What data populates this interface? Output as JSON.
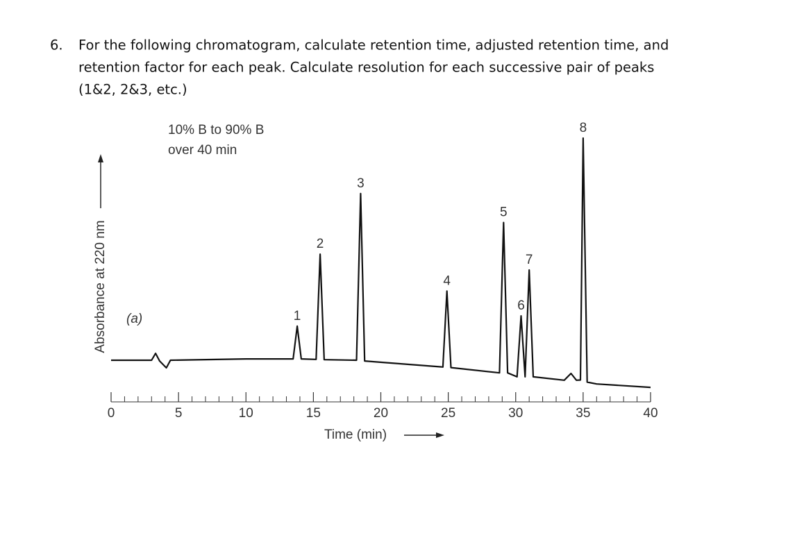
{
  "question": {
    "number": "6.",
    "lines": [
      "For the following chromatogram, calculate retention time, adjusted retention time, and",
      "retention factor for each peak. Calculate resolution for each successive pair of peaks",
      "(1&2, 2&3, etc.)"
    ]
  },
  "chart_data": {
    "type": "line",
    "annotations": [
      "10% B to 90% B",
      "over 40 min",
      "(a)"
    ],
    "xlabel": "Time (min)",
    "ylabel": "Absorbance at 220 nm",
    "x": [
      0,
      3.0,
      3.3,
      3.6,
      4.1,
      4.4,
      10,
      13.5,
      13.8,
      14.1,
      15.2,
      15.5,
      15.8,
      18.2,
      18.5,
      18.8,
      24.6,
      24.9,
      25.2,
      28.8,
      29.1,
      29.4,
      30.1,
      30.4,
      30.7,
      31.0,
      31.3,
      33.6,
      34.1,
      34.5,
      34.8,
      35.0,
      35.3,
      36,
      40
    ],
    "values": [
      10.8,
      10.8,
      13.4,
      10.5,
      7.9,
      10.8,
      11.3,
      11.3,
      23.7,
      11.3,
      11.1,
      51,
      11,
      10.8,
      74,
      10.5,
      8.2,
      37,
      8,
      6,
      63,
      6,
      4.5,
      27.6,
      4.5,
      45,
      4.5,
      3.2,
      5.8,
      3.2,
      3.3,
      95,
      2.5,
      1.8,
      0.5
    ],
    "labels": [
      null,
      null,
      null,
      null,
      null,
      null,
      null,
      null,
      "1",
      null,
      null,
      "2",
      null,
      null,
      "3",
      null,
      null,
      "4",
      null,
      null,
      "5",
      null,
      null,
      "6",
      null,
      "7",
      null,
      null,
      null,
      null,
      null,
      "8",
      null,
      null,
      null
    ],
    "color": "#111111",
    "xlim": [
      0,
      40
    ],
    "xticks": [
      0,
      5,
      10,
      15,
      20,
      25,
      30,
      35,
      40
    ],
    "xminorticks": [
      1,
      2,
      3,
      4,
      6,
      7,
      8,
      9,
      11,
      12,
      13,
      14,
      16,
      17,
      18,
      19,
      21,
      22,
      23,
      24,
      26,
      27,
      28,
      29,
      31,
      32,
      33,
      34,
      36,
      37,
      38,
      39
    ],
    "ylim": [
      0,
      100
    ]
  }
}
